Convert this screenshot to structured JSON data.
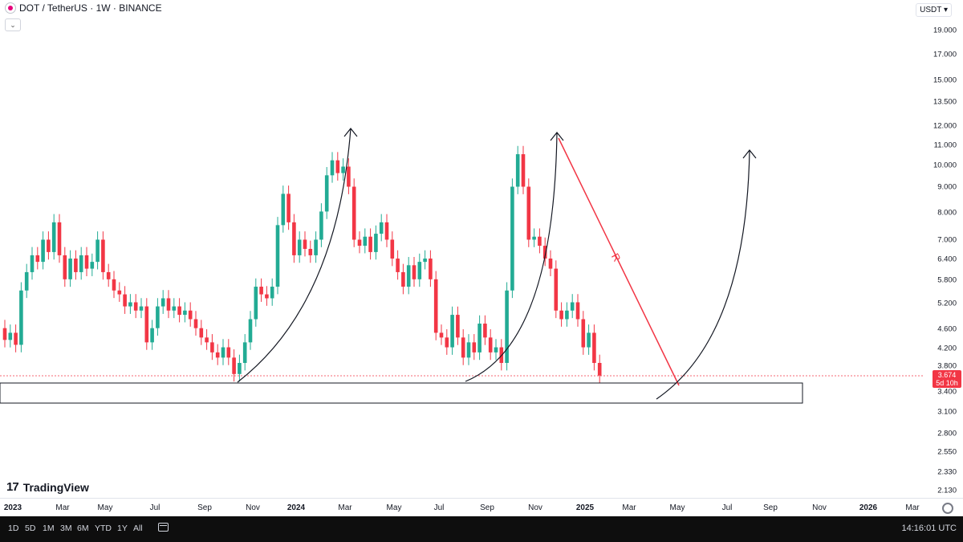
{
  "header": {
    "title": "DOT / TetherUS · 1W · BINANCE",
    "symbol_icon": "polkadot-icon",
    "collapse_icon": "chevron-down-icon",
    "currency": "USDT ▾"
  },
  "price_axis": {
    "ticks": [
      "19.000",
      "17.000",
      "15.000",
      "13.500",
      "12.000",
      "11.000",
      "10.000",
      "9.000",
      "8.000",
      "7.000",
      "6.400",
      "5.800",
      "5.200",
      "4.600",
      "4.200",
      "3.800",
      "3.400",
      "3.100",
      "2.800",
      "2.550",
      "2.330",
      "2.130"
    ],
    "current_price": "3.674",
    "countdown": "5d 10h",
    "current_color": "#f23645"
  },
  "time_axis": {
    "labels": [
      "2023",
      "Mar",
      "May",
      "Jul",
      "Sep",
      "Nov",
      "2024",
      "Mar",
      "May",
      "Jul",
      "Sep",
      "Nov",
      "2025",
      "Mar",
      "May",
      "Jul",
      "Sep",
      "Nov",
      "2026",
      "Mar"
    ],
    "settings_icon": "gear-icon"
  },
  "brand": {
    "logo": "17",
    "name": "TradingView"
  },
  "chart_data": {
    "type": "candlestick",
    "timeframe": "1W",
    "scale": "log",
    "up_color": "#22ab94",
    "down_color": "#f23645",
    "grid": false,
    "annotations": {
      "trendline_label": "R",
      "trendline_color": "#f23645",
      "support_zone": [
        3.25,
        3.55
      ],
      "arrow_targets": [
        11.8,
        11.8,
        10.8
      ]
    },
    "candles": [
      [
        4.6,
        4.35
      ],
      [
        4.35,
        4.5
      ],
      [
        4.5,
        4.25
      ],
      [
        4.25,
        5.5
      ],
      [
        5.5,
        6.0
      ],
      [
        6.0,
        6.5
      ],
      [
        6.5,
        6.3
      ],
      [
        6.3,
        7.0
      ],
      [
        7.0,
        6.6
      ],
      [
        6.6,
        7.6
      ],
      [
        7.6,
        6.5
      ],
      [
        6.5,
        5.8
      ],
      [
        5.8,
        6.4
      ],
      [
        6.4,
        6.0
      ],
      [
        6.0,
        6.5
      ],
      [
        6.5,
        6.1
      ],
      [
        6.1,
        6.3
      ],
      [
        6.3,
        7.0
      ],
      [
        7.0,
        6.0
      ],
      [
        6.0,
        5.8
      ],
      [
        5.8,
        5.5
      ],
      [
        5.5,
        5.4
      ],
      [
        5.4,
        5.1
      ],
      [
        5.1,
        5.2
      ],
      [
        5.2,
        5.0
      ],
      [
        5.0,
        5.1
      ],
      [
        5.1,
        4.3
      ],
      [
        4.3,
        4.6
      ],
      [
        4.6,
        5.1
      ],
      [
        5.1,
        5.3
      ],
      [
        5.3,
        5.0
      ],
      [
        5.0,
        5.1
      ],
      [
        5.1,
        4.9
      ],
      [
        4.9,
        5.0
      ],
      [
        5.0,
        4.8
      ],
      [
        4.8,
        4.6
      ],
      [
        4.6,
        4.4
      ],
      [
        4.4,
        4.3
      ],
      [
        4.3,
        4.1
      ],
      [
        4.1,
        4.0
      ],
      [
        4.0,
        4.2
      ],
      [
        4.2,
        4.0
      ],
      [
        4.0,
        3.7
      ],
      [
        3.7,
        3.9
      ],
      [
        3.9,
        4.3
      ],
      [
        4.3,
        4.8
      ],
      [
        4.8,
        5.6
      ],
      [
        5.6,
        5.4
      ],
      [
        5.4,
        5.3
      ],
      [
        5.3,
        5.6
      ],
      [
        5.6,
        7.5
      ],
      [
        7.5,
        8.7
      ],
      [
        8.7,
        7.6
      ],
      [
        7.6,
        6.5
      ],
      [
        6.5,
        7.0
      ],
      [
        7.0,
        6.7
      ],
      [
        6.7,
        6.5
      ],
      [
        6.5,
        7.0
      ],
      [
        7.0,
        8.0
      ],
      [
        8.0,
        9.5
      ],
      [
        9.5,
        10.2
      ],
      [
        10.2,
        9.6
      ],
      [
        9.6,
        9.9
      ],
      [
        9.9,
        9.0
      ],
      [
        9.0,
        7.0
      ],
      [
        7.0,
        6.8
      ],
      [
        6.8,
        7.1
      ],
      [
        7.1,
        6.6
      ],
      [
        6.6,
        7.2
      ],
      [
        7.2,
        7.6
      ],
      [
        7.6,
        7.0
      ],
      [
        7.0,
        6.4
      ],
      [
        6.4,
        6.0
      ],
      [
        6.0,
        5.6
      ],
      [
        5.6,
        6.2
      ],
      [
        6.2,
        5.8
      ],
      [
        5.8,
        6.3
      ],
      [
        6.3,
        6.4
      ],
      [
        6.4,
        5.8
      ],
      [
        5.8,
        4.5
      ],
      [
        4.5,
        4.4
      ],
      [
        4.4,
        4.2
      ],
      [
        4.2,
        4.9
      ],
      [
        4.9,
        4.4
      ],
      [
        4.4,
        4.0
      ],
      [
        4.0,
        4.3
      ],
      [
        4.3,
        4.1
      ],
      [
        4.1,
        4.7
      ],
      [
        4.7,
        4.4
      ],
      [
        4.4,
        4.1
      ],
      [
        4.1,
        4.2
      ],
      [
        4.2,
        3.9
      ],
      [
        3.9,
        5.5
      ],
      [
        5.5,
        9.0
      ],
      [
        9.0,
        10.5
      ],
      [
        10.5,
        9.0
      ],
      [
        9.0,
        7.0
      ],
      [
        7.0,
        7.1
      ],
      [
        7.1,
        6.8
      ],
      [
        6.8,
        6.4
      ],
      [
        6.4,
        6.1
      ],
      [
        6.1,
        5.0
      ],
      [
        5.0,
        4.8
      ],
      [
        4.8,
        5.0
      ],
      [
        5.0,
        5.2
      ],
      [
        5.2,
        4.8
      ],
      [
        4.8,
        4.2
      ],
      [
        4.2,
        4.5
      ],
      [
        4.5,
        3.9
      ],
      [
        3.9,
        3.674
      ]
    ]
  },
  "footer": {
    "ranges": [
      "1D",
      "5D",
      "1M",
      "3M",
      "6M",
      "YTD",
      "1Y",
      "All"
    ],
    "calendar_icon": "calendar-icon",
    "clock": "14:16:01 UTC"
  }
}
